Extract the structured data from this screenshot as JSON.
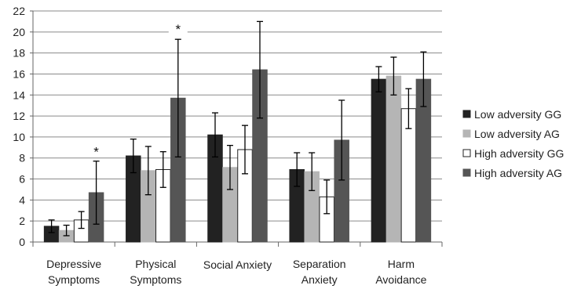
{
  "chart_data": {
    "type": "bar",
    "title": "",
    "xlabel": "",
    "ylabel": "",
    "ylim": [
      0,
      22
    ],
    "yticks": [
      0,
      2,
      4,
      6,
      8,
      10,
      12,
      14,
      16,
      18,
      20,
      22
    ],
    "grid": true,
    "legend_position": "right",
    "categories": [
      [
        "Depressive",
        "Symptoms"
      ],
      [
        "Physical",
        "Symptoms"
      ],
      [
        "Social Anxiety"
      ],
      [
        "Separation",
        "Anxiety"
      ],
      [
        "Harm",
        "Avoidance"
      ]
    ],
    "series": [
      {
        "name": "Low adversity GG",
        "color": "#222222",
        "stroke": "#222222",
        "values": [
          1.5,
          8.2,
          10.2,
          6.9,
          15.5
        ],
        "error": [
          0.6,
          1.6,
          2.1,
          1.6,
          1.2
        ]
      },
      {
        "name": "Low adversity AG",
        "color": "#b5b5b5",
        "stroke": "#b5b5b5",
        "values": [
          1.1,
          6.8,
          7.1,
          6.7,
          15.8
        ],
        "error": [
          0.5,
          2.3,
          2.1,
          1.8,
          1.8
        ]
      },
      {
        "name": "High adversity GG",
        "color": "#ffffff",
        "stroke": "#222222",
        "values": [
          2.1,
          6.9,
          8.8,
          4.3,
          12.7
        ],
        "error": [
          0.8,
          1.7,
          2.3,
          1.6,
          1.9
        ]
      },
      {
        "name": "High adversity AG",
        "color": "#555555",
        "stroke": "#555555",
        "values": [
          4.7,
          13.7,
          16.4,
          9.7,
          15.5
        ],
        "error": [
          3.0,
          5.6,
          4.6,
          3.8,
          2.6
        ]
      }
    ],
    "annotations": [
      {
        "text": "*",
        "category_index": 0,
        "series_index": 3,
        "y": 8.6
      },
      {
        "text": "*",
        "category_index": 1,
        "series_index": 3,
        "y": 20.3
      }
    ]
  }
}
